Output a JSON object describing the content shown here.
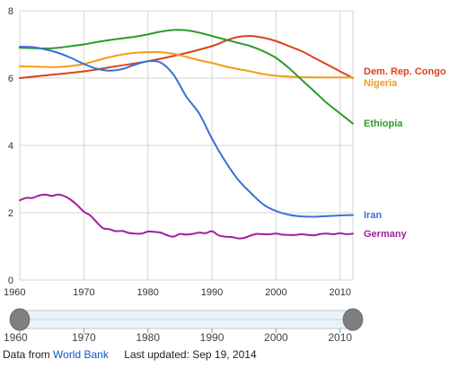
{
  "chart_data": {
    "type": "line",
    "title": "",
    "xlabel": "",
    "ylabel": "",
    "xlim": [
      1960,
      2012
    ],
    "ylim": [
      0,
      8
    ],
    "x_ticks": [
      1960,
      1970,
      1980,
      1990,
      2000,
      2010
    ],
    "y_ticks": [
      0,
      2,
      4,
      6,
      8
    ],
    "grid": true,
    "legend": "right, labels at line ends",
    "series": [
      {
        "name": "Dem. Rep. Congo",
        "color": "#d9431e",
        "x": [
          1960,
          1965,
          1970,
          1975,
          1980,
          1985,
          1990,
          1992,
          1994,
          1996,
          1998,
          2000,
          2002,
          2004,
          2006,
          2008,
          2010,
          2012
        ],
        "y": [
          6.0,
          6.1,
          6.2,
          6.35,
          6.5,
          6.7,
          6.95,
          7.1,
          7.22,
          7.25,
          7.2,
          7.1,
          6.95,
          6.8,
          6.6,
          6.4,
          6.2,
          6.0
        ]
      },
      {
        "name": "Nigeria",
        "color": "#f59b1b",
        "x": [
          1960,
          1964,
          1966,
          1968,
          1970,
          1972,
          1974,
          1976,
          1978,
          1980,
          1982,
          1984,
          1986,
          1988,
          1990,
          1992,
          1994,
          1996,
          1998,
          2000,
          2004,
          2008,
          2012
        ],
        "y": [
          6.35,
          6.33,
          6.33,
          6.36,
          6.42,
          6.52,
          6.62,
          6.7,
          6.75,
          6.77,
          6.77,
          6.72,
          6.63,
          6.53,
          6.45,
          6.35,
          6.27,
          6.2,
          6.12,
          6.07,
          6.03,
          6.02,
          6.02
        ]
      },
      {
        "name": "Ethiopia",
        "color": "#2a9c2a",
        "x": [
          1960,
          1964,
          1966,
          1968,
          1970,
          1972,
          1974,
          1976,
          1978,
          1980,
          1982,
          1984,
          1986,
          1988,
          1990,
          1992,
          1994,
          1996,
          1998,
          2000,
          2002,
          2004,
          2006,
          2008,
          2010,
          2012
        ],
        "y": [
          6.9,
          6.88,
          6.9,
          6.95,
          7.0,
          7.07,
          7.13,
          7.18,
          7.23,
          7.3,
          7.38,
          7.43,
          7.42,
          7.35,
          7.25,
          7.15,
          7.05,
          6.95,
          6.8,
          6.6,
          6.3,
          5.95,
          5.6,
          5.25,
          4.95,
          4.65
        ]
      },
      {
        "name": "Iran",
        "color": "#3a6fd8",
        "x": [
          1960,
          1962,
          1964,
          1966,
          1968,
          1970,
          1972,
          1974,
          1976,
          1978,
          1980,
          1982,
          1984,
          1986,
          1988,
          1990,
          1992,
          1994,
          1996,
          1998,
          2000,
          2002,
          2004,
          2006,
          2008,
          2010,
          2012
        ],
        "y": [
          6.93,
          6.92,
          6.85,
          6.75,
          6.6,
          6.42,
          6.28,
          6.22,
          6.27,
          6.4,
          6.5,
          6.46,
          6.1,
          5.45,
          4.95,
          4.2,
          3.55,
          3.0,
          2.6,
          2.25,
          2.05,
          1.94,
          1.89,
          1.88,
          1.9,
          1.92,
          1.93
        ]
      },
      {
        "name": "Germany",
        "color": "#a020a0",
        "x": [
          1960,
          1961,
          1962,
          1963,
          1964,
          1965,
          1966,
          1967,
          1968,
          1969,
          1970,
          1971,
          1972,
          1973,
          1974,
          1975,
          1976,
          1977,
          1978,
          1979,
          1980,
          1981,
          1982,
          1983,
          1984,
          1985,
          1986,
          1987,
          1988,
          1989,
          1990,
          1991,
          1992,
          1993,
          1994,
          1995,
          1996,
          1997,
          1998,
          1999,
          2000,
          2001,
          2002,
          2003,
          2004,
          2005,
          2006,
          2007,
          2008,
          2009,
          2010,
          2011,
          2012
        ],
        "y": [
          2.37,
          2.44,
          2.44,
          2.51,
          2.54,
          2.5,
          2.54,
          2.49,
          2.38,
          2.22,
          2.03,
          1.92,
          1.72,
          1.54,
          1.51,
          1.45,
          1.46,
          1.4,
          1.38,
          1.38,
          1.44,
          1.43,
          1.41,
          1.33,
          1.29,
          1.37,
          1.35,
          1.37,
          1.41,
          1.39,
          1.45,
          1.33,
          1.29,
          1.28,
          1.24,
          1.25,
          1.32,
          1.37,
          1.36,
          1.36,
          1.38,
          1.35,
          1.34,
          1.34,
          1.36,
          1.34,
          1.33,
          1.37,
          1.38,
          1.36,
          1.39,
          1.36,
          1.38
        ]
      }
    ]
  },
  "range_slider": {
    "tick_labels": [
      "1960",
      "1970",
      "1980",
      "1990",
      "2000",
      "2010"
    ],
    "selected_range": [
      1960,
      2012
    ]
  },
  "footer": {
    "source_prefix": "Data from",
    "source_link": "World Bank",
    "updated": "Last updated: Sep 19, 2014"
  }
}
